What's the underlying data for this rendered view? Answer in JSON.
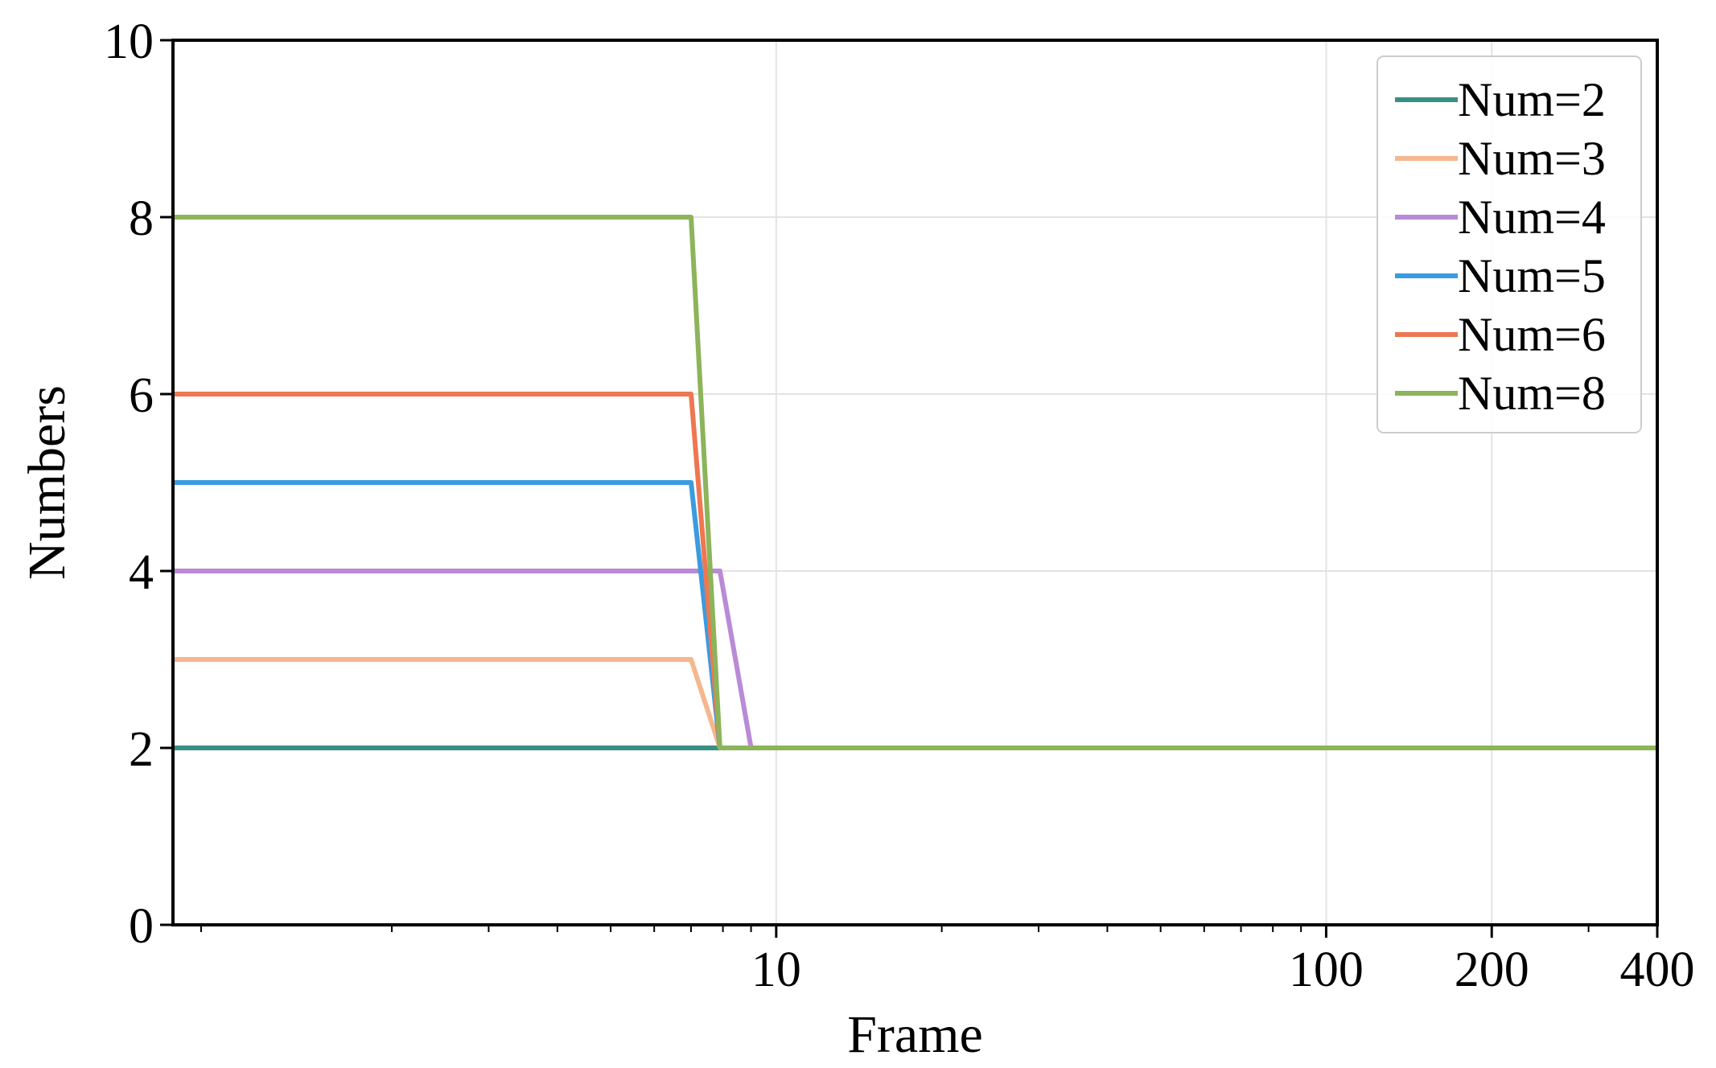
{
  "chart_data": {
    "type": "line",
    "xlabel": "Frame",
    "ylabel": "Numbers",
    "xscale": "log",
    "xlim": [
      0.8,
      400
    ],
    "ylim": [
      0,
      10
    ],
    "x_ticks": [
      10,
      100,
      200,
      400
    ],
    "x_tick_labels": [
      "10",
      "100",
      "200",
      "400"
    ],
    "y_ticks": [
      0,
      2,
      4,
      6,
      8,
      10
    ],
    "y_tick_labels": [
      "0",
      "2",
      "4",
      "6",
      "8",
      "10"
    ],
    "grid": true,
    "legend_position": "top-right",
    "series": [
      {
        "name": "Num=2",
        "color": "#3a8f85",
        "x": [
          0.8,
          400
        ],
        "y": [
          2,
          2
        ]
      },
      {
        "name": "Num=3",
        "color": "#f5b78e",
        "x": [
          0.8,
          7.0,
          7.9,
          400
        ],
        "y": [
          3,
          3,
          2,
          2
        ]
      },
      {
        "name": "Num=4",
        "color": "#b98ad6",
        "x": [
          0.8,
          7.9,
          9.0,
          400
        ],
        "y": [
          4,
          4,
          2,
          2
        ]
      },
      {
        "name": "Num=5",
        "color": "#3b9be0",
        "x": [
          0.8,
          7.0,
          7.9,
          400
        ],
        "y": [
          5,
          5,
          2,
          2
        ]
      },
      {
        "name": "Num=6",
        "color": "#ee7752",
        "x": [
          0.8,
          7.0,
          7.9,
          400
        ],
        "y": [
          6,
          6,
          2,
          2
        ]
      },
      {
        "name": "Num=8",
        "color": "#8cb45a",
        "x": [
          0.8,
          7.0,
          7.9,
          400
        ],
        "y": [
          8,
          8,
          2,
          2
        ]
      }
    ]
  }
}
